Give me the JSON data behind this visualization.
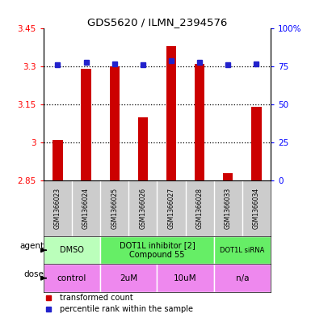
{
  "title": "GDS5620 / ILMN_2394576",
  "samples": [
    "GSM1366023",
    "GSM1366024",
    "GSM1366025",
    "GSM1366026",
    "GSM1366027",
    "GSM1366028",
    "GSM1366033",
    "GSM1366034"
  ],
  "red_values": [
    3.01,
    3.29,
    3.3,
    3.1,
    3.38,
    3.31,
    2.88,
    3.14
  ],
  "blue_values": [
    76,
    78,
    77,
    76,
    79,
    78,
    76,
    77
  ],
  "y_min": 2.85,
  "y_max": 3.45,
  "y_ticks": [
    2.85,
    3.0,
    3.15,
    3.3,
    3.45
  ],
  "y_tick_labels": [
    "2.85",
    "3",
    "3.15",
    "3.3",
    "3.45"
  ],
  "y2_ticks": [
    0,
    25,
    50,
    75,
    100
  ],
  "y2_tick_labels": [
    "0",
    "25",
    "50",
    "75",
    "100%"
  ],
  "grid_lines": [
    3.0,
    3.15,
    3.3
  ],
  "agent_groups": [
    {
      "label": "DMSO",
      "start": 0,
      "end": 2,
      "color": "#bbffbb"
    },
    {
      "label": "DOT1L inhibitor [2]\nCompound 55",
      "start": 2,
      "end": 6,
      "color": "#66ee66"
    },
    {
      "label": "DOT1L siRNA",
      "start": 6,
      "end": 8,
      "color": "#66ee66"
    }
  ],
  "dose_groups": [
    {
      "label": "control",
      "start": 0,
      "end": 2,
      "color": "#ee88ee"
    },
    {
      "label": "2uM",
      "start": 2,
      "end": 4,
      "color": "#ee88ee"
    },
    {
      "label": "10uM",
      "start": 4,
      "end": 6,
      "color": "#ee88ee"
    },
    {
      "label": "n/a",
      "start": 6,
      "end": 8,
      "color": "#ee88ee"
    }
  ],
  "red_color": "#cc0000",
  "blue_color": "#2222cc",
  "bar_bottom": 2.85,
  "bar_width": 0.35,
  "legend_red_label": "transformed count",
  "legend_blue_label": "percentile rank within the sample",
  "agent_label": "agent",
  "dose_label": "dose",
  "gsm_color": "#cccccc",
  "n_samples": 8
}
